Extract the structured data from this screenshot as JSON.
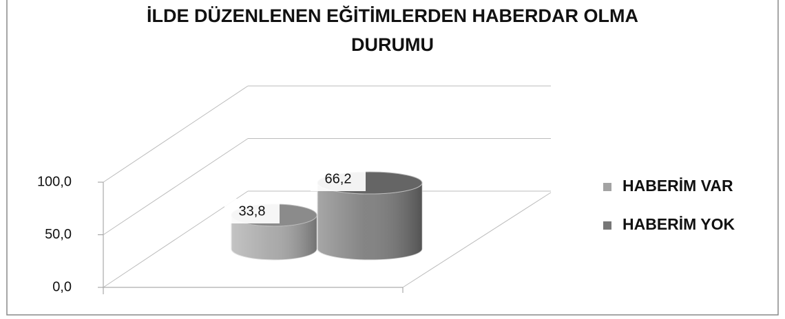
{
  "chart_data": {
    "type": "bar",
    "title": "İLDE DÜZENLENEN EĞİTİMLERDEN HABERDAR OLMA DURUMU",
    "categories": [
      null
    ],
    "series": [
      {
        "name": "HABERİM VAR",
        "color": "#a3a3a3",
        "values": [
          33.8
        ],
        "value_labels": [
          "33,8"
        ]
      },
      {
        "name": "HABERİM YOK",
        "color": "#777777",
        "values": [
          66.2
        ],
        "value_labels": [
          "66,2"
        ]
      }
    ],
    "ylim": [
      0,
      100
    ],
    "yticks": [
      {
        "value": 0,
        "label": "0,0"
      },
      {
        "value": 50,
        "label": "50,0"
      },
      {
        "value": 100,
        "label": "100,0"
      }
    ],
    "grid": true,
    "legend": "right"
  }
}
